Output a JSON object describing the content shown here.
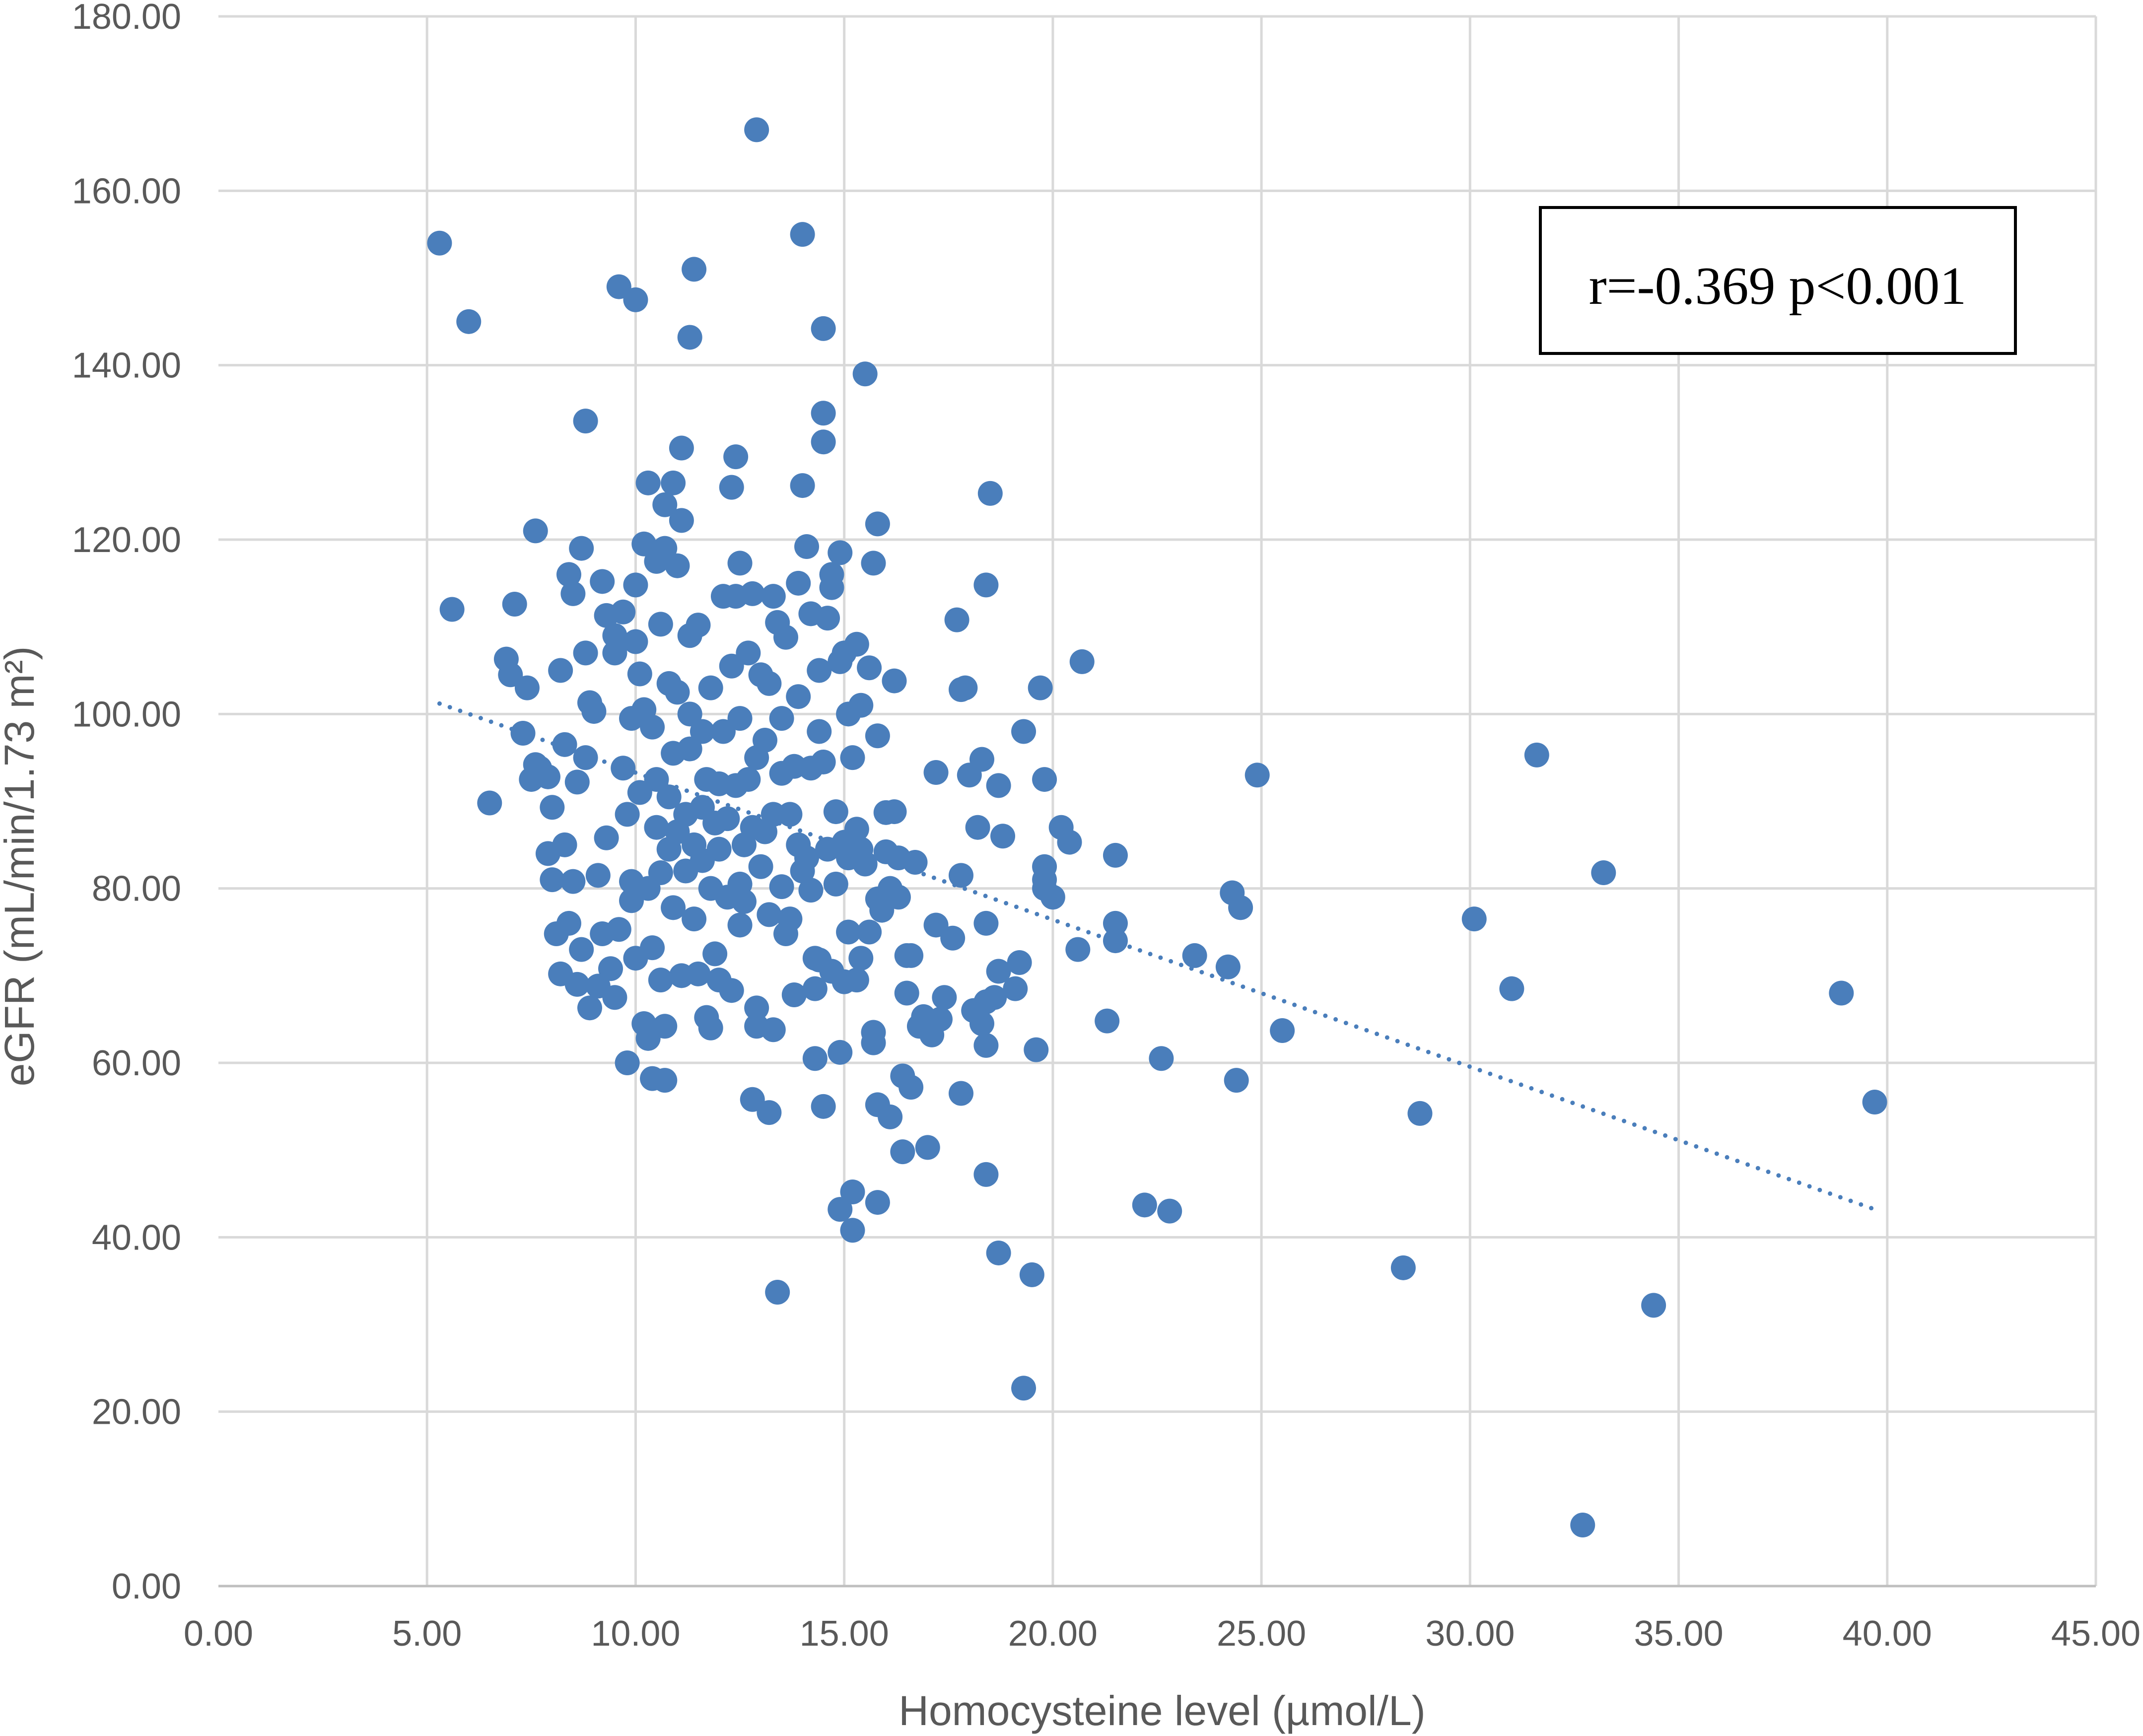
{
  "chart_data": {
    "type": "scatter",
    "title": "",
    "xlabel": "Homocysteine level (µmol/L)",
    "ylabel": "eGFR (mL/min/1.73 m²)",
    "xlim": [
      0,
      45
    ],
    "ylim": [
      0,
      180
    ],
    "x_ticks": [
      0,
      5,
      10,
      15,
      20,
      25,
      30,
      35,
      40,
      45
    ],
    "y_ticks": [
      0,
      20,
      40,
      60,
      80,
      100,
      120,
      140,
      160,
      180
    ],
    "x_tick_labels": [
      "0.00",
      "5.00",
      "10.00",
      "15.00",
      "20.00",
      "25.00",
      "30.00",
      "35.00",
      "40.00",
      "45.00"
    ],
    "y_tick_labels": [
      "0.00",
      "20.00",
      "40.00",
      "60.00",
      "80.00",
      "100.00",
      "120.00",
      "140.00",
      "160.00",
      "180.00"
    ],
    "grid": true,
    "legend": "none",
    "marker_color": "#4a7ebb",
    "trendline": {
      "style": "dotted",
      "color": "#4a7ebb",
      "from": [
        5.3,
        101.2
      ],
      "to": [
        39.7,
        43.2
      ]
    },
    "annotation": "r=-0.369 p<0.001",
    "points": [
      [
        5.3,
        154.0
      ],
      [
        6.0,
        145.0
      ],
      [
        5.6,
        112.0
      ],
      [
        6.5,
        89.8
      ],
      [
        6.9,
        106.3
      ],
      [
        7.1,
        112.6
      ],
      [
        7.0,
        104.5
      ],
      [
        7.3,
        97.8
      ],
      [
        7.4,
        103.0
      ],
      [
        7.5,
        92.5
      ],
      [
        7.6,
        94.2
      ],
      [
        7.6,
        121.0
      ],
      [
        7.7,
        93.8
      ],
      [
        7.9,
        92.8
      ],
      [
        8.0,
        89.3
      ],
      [
        7.9,
        84.0
      ],
      [
        8.0,
        81.0
      ],
      [
        8.1,
        74.8
      ],
      [
        8.2,
        70.2
      ],
      [
        8.2,
        105.0
      ],
      [
        8.3,
        96.5
      ],
      [
        8.3,
        85.0
      ],
      [
        8.4,
        76.0
      ],
      [
        8.4,
        116.0
      ],
      [
        8.5,
        113.8
      ],
      [
        8.5,
        80.8
      ],
      [
        8.6,
        92.2
      ],
      [
        8.6,
        69.0
      ],
      [
        8.7,
        73.0
      ],
      [
        8.7,
        119.0
      ],
      [
        8.8,
        107.0
      ],
      [
        8.8,
        133.6
      ],
      [
        8.8,
        95.0
      ],
      [
        8.9,
        101.3
      ],
      [
        8.9,
        66.3
      ],
      [
        9.0,
        100.3
      ],
      [
        9.1,
        81.5
      ],
      [
        9.1,
        68.8
      ],
      [
        9.2,
        74.8
      ],
      [
        9.2,
        115.2
      ],
      [
        9.3,
        111.3
      ],
      [
        9.3,
        85.8
      ],
      [
        9.4,
        70.8
      ],
      [
        9.5,
        107.0
      ],
      [
        9.5,
        109.0
      ],
      [
        9.5,
        67.5
      ],
      [
        9.6,
        75.3
      ],
      [
        9.6,
        149.0
      ],
      [
        9.7,
        111.7
      ],
      [
        9.7,
        93.8
      ],
      [
        9.8,
        60.0
      ],
      [
        9.8,
        88.5
      ],
      [
        9.9,
        80.8
      ],
      [
        9.9,
        99.5
      ],
      [
        9.9,
        78.6
      ],
      [
        10.0,
        147.5
      ],
      [
        10.0,
        72.0
      ],
      [
        10.0,
        108.3
      ],
      [
        10.0,
        114.8
      ],
      [
        10.1,
        104.6
      ],
      [
        10.1,
        91.0
      ],
      [
        10.2,
        100.5
      ],
      [
        10.2,
        64.5
      ],
      [
        10.2,
        119.5
      ],
      [
        10.3,
        62.8
      ],
      [
        10.3,
        126.5
      ],
      [
        10.3,
        80.0
      ],
      [
        10.4,
        58.2
      ],
      [
        10.4,
        73.2
      ],
      [
        10.4,
        98.5
      ],
      [
        10.5,
        117.5
      ],
      [
        10.5,
        92.5
      ],
      [
        10.5,
        87.0
      ],
      [
        10.6,
        110.3
      ],
      [
        10.6,
        69.5
      ],
      [
        10.6,
        81.8
      ],
      [
        10.7,
        124.0
      ],
      [
        10.7,
        119.0
      ],
      [
        10.7,
        64.2
      ],
      [
        10.7,
        58.0
      ],
      [
        10.8,
        103.5
      ],
      [
        10.8,
        90.5
      ],
      [
        10.8,
        84.5
      ],
      [
        10.9,
        126.5
      ],
      [
        10.9,
        95.5
      ],
      [
        10.9,
        77.8
      ],
      [
        11.0,
        117.0
      ],
      [
        11.0,
        102.5
      ],
      [
        11.0,
        86.5
      ],
      [
        11.1,
        122.2
      ],
      [
        11.1,
        130.5
      ],
      [
        11.1,
        70.0
      ],
      [
        11.2,
        88.5
      ],
      [
        11.2,
        82.0
      ],
      [
        11.3,
        109.0
      ],
      [
        11.3,
        100.0
      ],
      [
        11.3,
        96.0
      ],
      [
        11.3,
        143.2
      ],
      [
        11.4,
        76.5
      ],
      [
        11.4,
        85.0
      ],
      [
        11.4,
        151.0
      ],
      [
        11.5,
        110.2
      ],
      [
        11.5,
        70.2
      ],
      [
        11.6,
        98.0
      ],
      [
        11.6,
        89.3
      ],
      [
        11.6,
        83.2
      ],
      [
        11.7,
        65.2
      ],
      [
        11.7,
        92.5
      ],
      [
        11.8,
        103.0
      ],
      [
        11.8,
        80.0
      ],
      [
        11.8,
        64.0
      ],
      [
        11.9,
        87.5
      ],
      [
        11.9,
        72.5
      ],
      [
        12.0,
        92.0
      ],
      [
        12.0,
        84.5
      ],
      [
        12.0,
        69.5
      ],
      [
        12.1,
        113.5
      ],
      [
        12.1,
        98.0
      ],
      [
        12.2,
        88.0
      ],
      [
        12.2,
        79.0
      ],
      [
        12.3,
        126.0
      ],
      [
        12.3,
        105.5
      ],
      [
        12.3,
        68.3
      ],
      [
        12.4,
        129.5
      ],
      [
        12.4,
        113.5
      ],
      [
        12.4,
        91.8
      ],
      [
        12.5,
        117.3
      ],
      [
        12.5,
        99.5
      ],
      [
        12.5,
        80.5
      ],
      [
        12.5,
        75.8
      ],
      [
        12.6,
        85.0
      ],
      [
        12.6,
        78.5
      ],
      [
        12.7,
        107.0
      ],
      [
        12.7,
        92.5
      ],
      [
        12.8,
        55.8
      ],
      [
        12.8,
        113.8
      ],
      [
        12.8,
        87.0
      ],
      [
        12.9,
        167.0
      ],
      [
        12.9,
        95.0
      ],
      [
        12.9,
        66.3
      ],
      [
        12.9,
        64.2
      ],
      [
        13.0,
        104.5
      ],
      [
        13.0,
        82.5
      ],
      [
        13.1,
        97.0
      ],
      [
        13.1,
        86.5
      ],
      [
        13.2,
        103.5
      ],
      [
        13.2,
        77.0
      ],
      [
        13.2,
        54.3
      ],
      [
        13.3,
        113.5
      ],
      [
        13.3,
        88.5
      ],
      [
        13.3,
        63.8
      ],
      [
        13.4,
        110.5
      ],
      [
        13.4,
        33.7
      ],
      [
        13.5,
        99.5
      ],
      [
        13.5,
        93.2
      ],
      [
        13.5,
        80.2
      ],
      [
        13.6,
        108.8
      ],
      [
        13.6,
        74.8
      ],
      [
        13.7,
        88.5
      ],
      [
        13.7,
        76.5
      ],
      [
        13.8,
        94.0
      ],
      [
        13.8,
        67.8
      ],
      [
        13.9,
        115.0
      ],
      [
        13.9,
        102.0
      ],
      [
        13.9,
        85.0
      ],
      [
        14.0,
        155.0
      ],
      [
        14.0,
        126.2
      ],
      [
        14.0,
        82.0
      ],
      [
        14.1,
        119.2
      ],
      [
        14.1,
        83.5
      ],
      [
        14.2,
        111.5
      ],
      [
        14.2,
        93.8
      ],
      [
        14.2,
        79.8
      ],
      [
        14.3,
        72.0
      ],
      [
        14.3,
        60.5
      ],
      [
        14.3,
        68.5
      ],
      [
        14.4,
        105.0
      ],
      [
        14.4,
        98.0
      ],
      [
        14.4,
        71.8
      ],
      [
        14.5,
        134.5
      ],
      [
        14.5,
        131.2
      ],
      [
        14.5,
        144.2
      ],
      [
        14.5,
        94.5
      ],
      [
        14.5,
        55.0
      ],
      [
        14.6,
        111.0
      ],
      [
        14.6,
        84.5
      ],
      [
        14.7,
        116.0
      ],
      [
        14.7,
        114.5
      ],
      [
        14.7,
        70.5
      ],
      [
        14.8,
        88.8
      ],
      [
        14.8,
        80.5
      ],
      [
        14.9,
        118.5
      ],
      [
        14.9,
        106.0
      ],
      [
        14.9,
        61.2
      ],
      [
        14.9,
        43.2
      ],
      [
        15.0,
        107.0
      ],
      [
        15.0,
        85.3
      ],
      [
        15.0,
        69.3
      ],
      [
        15.1,
        100.0
      ],
      [
        15.1,
        83.5
      ],
      [
        15.1,
        75.0
      ],
      [
        15.2,
        95.0
      ],
      [
        15.2,
        45.2
      ],
      [
        15.2,
        40.8
      ],
      [
        15.3,
        108.0
      ],
      [
        15.3,
        86.8
      ],
      [
        15.3,
        69.5
      ],
      [
        15.4,
        72.0
      ],
      [
        15.4,
        101.0
      ],
      [
        15.4,
        84.5
      ],
      [
        15.5,
        82.8
      ],
      [
        15.5,
        139.0
      ],
      [
        15.6,
        105.3
      ],
      [
        15.6,
        75.0
      ],
      [
        15.7,
        117.3
      ],
      [
        15.7,
        62.3
      ],
      [
        15.7,
        63.5
      ],
      [
        15.8,
        121.8
      ],
      [
        15.8,
        97.5
      ],
      [
        15.8,
        78.8
      ],
      [
        15.8,
        55.2
      ],
      [
        15.8,
        44.0
      ],
      [
        15.9,
        77.5
      ],
      [
        16.0,
        88.7
      ],
      [
        16.0,
        84.2
      ],
      [
        16.1,
        80.0
      ],
      [
        16.1,
        53.8
      ],
      [
        16.2,
        103.8
      ],
      [
        16.2,
        88.8
      ],
      [
        16.3,
        79.0
      ],
      [
        16.3,
        83.5
      ],
      [
        16.4,
        58.5
      ],
      [
        16.4,
        49.8
      ],
      [
        16.5,
        72.3
      ],
      [
        16.5,
        68.0
      ],
      [
        16.6,
        57.2
      ],
      [
        16.6,
        72.3
      ],
      [
        16.7,
        83.0
      ],
      [
        16.8,
        64.2
      ],
      [
        16.9,
        65.3
      ],
      [
        17.0,
        50.3
      ],
      [
        17.1,
        63.2
      ],
      [
        17.2,
        93.3
      ],
      [
        17.2,
        75.8
      ],
      [
        17.3,
        65.0
      ],
      [
        17.4,
        67.5
      ],
      [
        17.6,
        74.3
      ],
      [
        17.7,
        110.8
      ],
      [
        17.8,
        102.8
      ],
      [
        17.8,
        56.5
      ],
      [
        17.8,
        81.5
      ],
      [
        17.9,
        103.0
      ],
      [
        18.0,
        93.0
      ],
      [
        18.1,
        66.0
      ],
      [
        18.2,
        87.0
      ],
      [
        18.3,
        94.8
      ],
      [
        18.3,
        64.5
      ],
      [
        18.4,
        67.0
      ],
      [
        18.4,
        114.8
      ],
      [
        18.4,
        76.0
      ],
      [
        18.4,
        62.0
      ],
      [
        18.4,
        47.2
      ],
      [
        18.5,
        125.3
      ],
      [
        18.6,
        67.5
      ],
      [
        18.7,
        70.5
      ],
      [
        18.7,
        91.8
      ],
      [
        18.7,
        38.2
      ],
      [
        18.8,
        86.0
      ],
      [
        19.1,
        68.5
      ],
      [
        19.2,
        71.5
      ],
      [
        19.3,
        98.0
      ],
      [
        19.3,
        22.7
      ],
      [
        19.5,
        35.7
      ],
      [
        19.6,
        61.5
      ],
      [
        19.7,
        103.0
      ],
      [
        19.8,
        92.5
      ],
      [
        19.8,
        82.5
      ],
      [
        19.8,
        81.0
      ],
      [
        19.8,
        80.0
      ],
      [
        20.0,
        79.0
      ],
      [
        20.2,
        87.0
      ],
      [
        20.4,
        85.3
      ],
      [
        20.6,
        73.0
      ],
      [
        20.7,
        106.0
      ],
      [
        21.3,
        64.8
      ],
      [
        21.5,
        83.8
      ],
      [
        21.5,
        76.0
      ],
      [
        21.5,
        74.0
      ],
      [
        22.2,
        43.7
      ],
      [
        22.6,
        60.5
      ],
      [
        22.8,
        43.0
      ],
      [
        23.4,
        72.3
      ],
      [
        24.2,
        71.0
      ],
      [
        24.3,
        79.5
      ],
      [
        24.4,
        58.0
      ],
      [
        24.5,
        77.8
      ],
      [
        24.9,
        93.0
      ],
      [
        25.5,
        63.7
      ],
      [
        28.4,
        36.5
      ],
      [
        28.8,
        54.2
      ],
      [
        30.1,
        76.5
      ],
      [
        31.0,
        68.5
      ],
      [
        31.6,
        95.3
      ],
      [
        32.7,
        7.0
      ],
      [
        33.2,
        81.8
      ],
      [
        34.4,
        32.2
      ],
      [
        38.9,
        68.0
      ],
      [
        39.7,
        55.5
      ]
    ]
  }
}
